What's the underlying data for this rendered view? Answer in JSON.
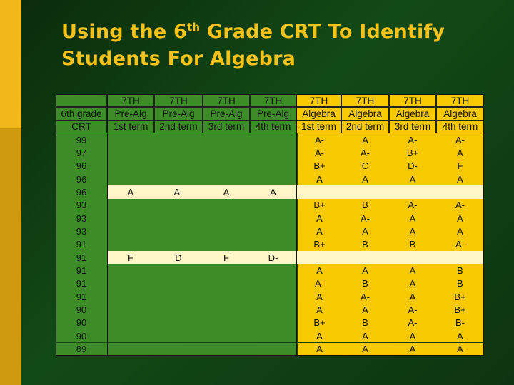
{
  "title": {
    "line1_prefix": "Using the 6",
    "line1_sup": "th",
    "line1_suffix": " Grade CRT To Identify",
    "line2": "Students For Algebra"
  },
  "colors": {
    "green_cell": "#3c8d28",
    "yellow_cell": "#f7c900",
    "highlight_row": "#fff6c8",
    "title": "#f5c21a"
  },
  "table": {
    "header_rows": [
      [
        "",
        "7TH",
        "7TH",
        "7TH",
        "7TH",
        "7TH",
        "7TH",
        "7TH",
        "7TH"
      ],
      [
        "6th grade",
        "Pre-Alg",
        "Pre-Alg",
        "Pre-Alg",
        "Pre-Alg",
        "Algebra",
        "Algebra",
        "Algebra",
        "Algebra"
      ],
      [
        "CRT",
        "1st term",
        "2nd term",
        "3rd term",
        "4th term",
        "1st term",
        "2nd term",
        "3rd term",
        "4th term"
      ]
    ],
    "rows": [
      {
        "crt": "99",
        "prealg": [
          "",
          "",
          "",
          ""
        ],
        "alg": [
          "A-",
          "A",
          "A-",
          "A-"
        ],
        "highlight": false
      },
      {
        "crt": "97",
        "prealg": [
          "",
          "",
          "",
          ""
        ],
        "alg": [
          "A-",
          "A-",
          "B+",
          "A"
        ],
        "highlight": false
      },
      {
        "crt": "96",
        "prealg": [
          "",
          "",
          "",
          ""
        ],
        "alg": [
          "B+",
          "C",
          "D-",
          "F"
        ],
        "highlight": false
      },
      {
        "crt": "96",
        "prealg": [
          "",
          "",
          "",
          ""
        ],
        "alg": [
          "A",
          "A",
          "A",
          "A"
        ],
        "highlight": false
      },
      {
        "crt": "96",
        "prealg": [
          "A",
          "A-",
          "A",
          "A"
        ],
        "alg": [
          "",
          "",
          "",
          ""
        ],
        "highlight": true
      },
      {
        "crt": "93",
        "prealg": [
          "",
          "",
          "",
          ""
        ],
        "alg": [
          "B+",
          "B",
          "A-",
          "A-"
        ],
        "highlight": false
      },
      {
        "crt": "93",
        "prealg": [
          "",
          "",
          "",
          ""
        ],
        "alg": [
          "A",
          "A-",
          "A",
          "A"
        ],
        "highlight": false
      },
      {
        "crt": "93",
        "prealg": [
          "",
          "",
          "",
          ""
        ],
        "alg": [
          "A",
          "A",
          "A",
          "A"
        ],
        "highlight": false
      },
      {
        "crt": "91",
        "prealg": [
          "",
          "",
          "",
          ""
        ],
        "alg": [
          "B+",
          "B",
          "B",
          "A-"
        ],
        "highlight": false
      },
      {
        "crt": "91",
        "prealg": [
          "F",
          "D",
          "F",
          "D-"
        ],
        "alg": [
          "",
          "",
          "",
          ""
        ],
        "highlight": true
      },
      {
        "crt": "91",
        "prealg": [
          "",
          "",
          "",
          ""
        ],
        "alg": [
          "A",
          "A",
          "A",
          "B"
        ],
        "highlight": false
      },
      {
        "crt": "91",
        "prealg": [
          "",
          "",
          "",
          ""
        ],
        "alg": [
          "A-",
          "B",
          "A",
          "B"
        ],
        "highlight": false
      },
      {
        "crt": "91",
        "prealg": [
          "",
          "",
          "",
          ""
        ],
        "alg": [
          "A",
          "A-",
          "A",
          "B+"
        ],
        "highlight": false
      },
      {
        "crt": "90",
        "prealg": [
          "",
          "",
          "",
          ""
        ],
        "alg": [
          "A",
          "A",
          "A-",
          "B+"
        ],
        "highlight": false
      },
      {
        "crt": "90",
        "prealg": [
          "",
          "",
          "",
          ""
        ],
        "alg": [
          "B+",
          "B",
          "A-",
          "B-"
        ],
        "highlight": false
      },
      {
        "crt": "90",
        "prealg": [
          "",
          "",
          "",
          ""
        ],
        "alg": [
          "A",
          "A",
          "A",
          "A"
        ],
        "highlight": false
      },
      {
        "crt": "89",
        "prealg": [
          "",
          "",
          "",
          ""
        ],
        "alg": [
          "A",
          "A",
          "A",
          "A"
        ],
        "highlight": false
      }
    ]
  }
}
